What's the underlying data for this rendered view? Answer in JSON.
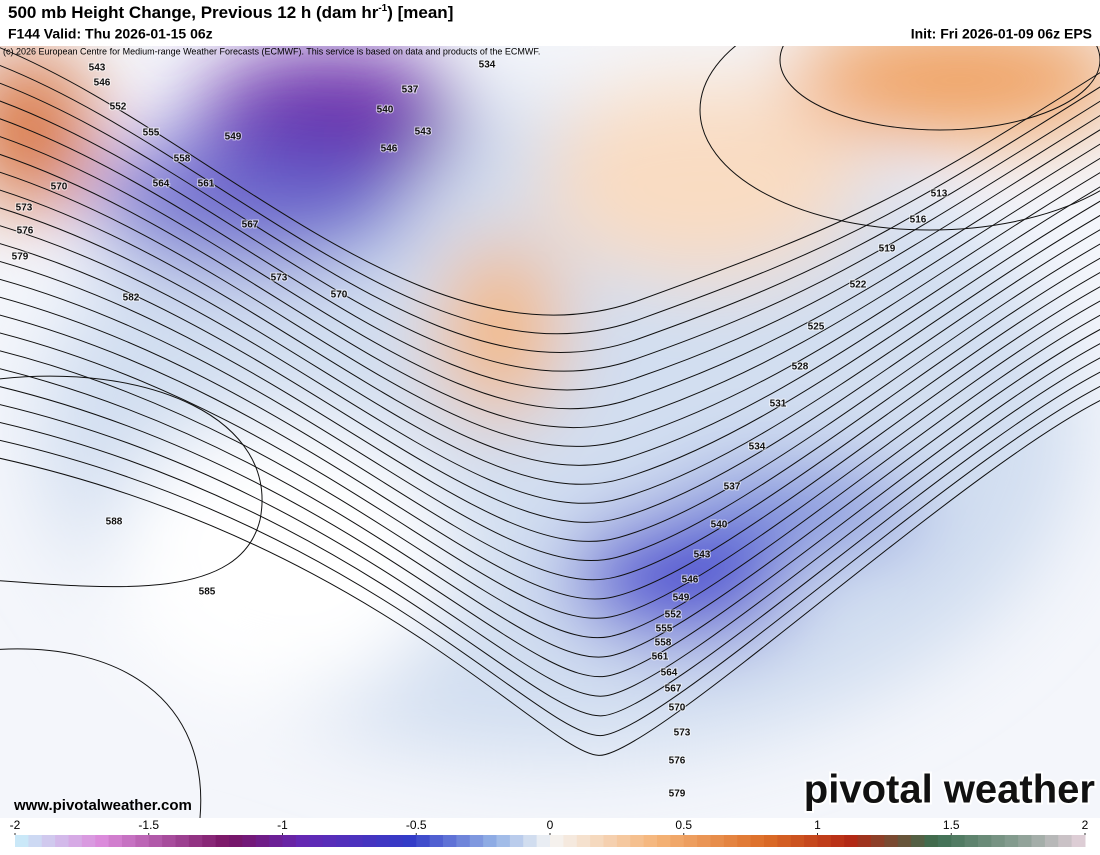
{
  "header": {
    "title": "500 mb Height Change, Previous 12 h (dam hr",
    "title_sup": "-1",
    "title_end": ") [mean]",
    "valid": "F144 Valid: Thu 2026-01-15 06z",
    "init": "Init: Fri 2026-01-09 06z EPS",
    "credit": "(c) 2026 European Centre for Medium-range Weather Forecasts (ECMWF). This service is based on data and products of the ECMWF."
  },
  "map": {
    "contour_labels": [
      543,
      546,
      552,
      555,
      558,
      564,
      561,
      570,
      573,
      576,
      579,
      549,
      567,
      573,
      570,
      582,
      534,
      537,
      540,
      543,
      546,
      588,
      585,
      513,
      516,
      519,
      522,
      525,
      528,
      531,
      534,
      537,
      540,
      543,
      546,
      549,
      552,
      555,
      558,
      561,
      564,
      567,
      570,
      573,
      576,
      579
    ]
  },
  "footer": {
    "website": "www.pivotalweather.com",
    "logo": "pivotal weather"
  },
  "colorbar": {
    "range": [
      -2,
      2
    ],
    "ticks": [
      -2,
      -1.5,
      -1,
      -0.5,
      0,
      0.5,
      1,
      1.5,
      2
    ]
  }
}
